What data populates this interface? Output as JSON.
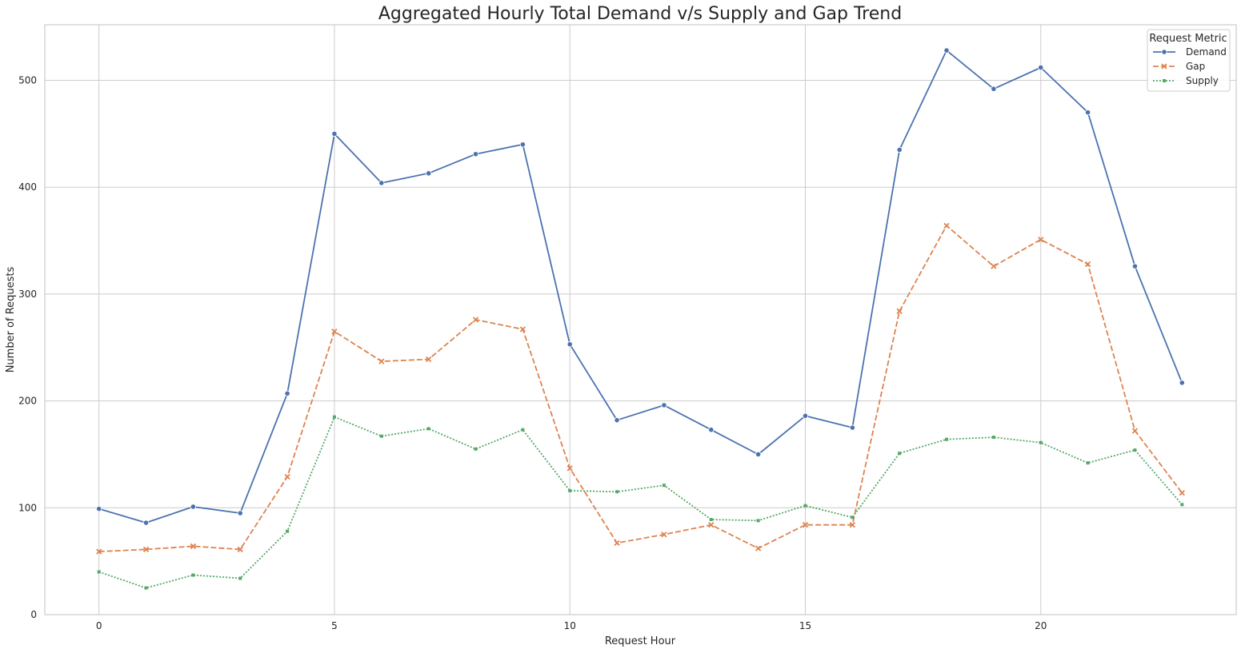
{
  "chart_data": {
    "type": "line",
    "title": "Aggregated Hourly Total Demand v/s Supply and Gap Trend",
    "xlabel": "Request Hour",
    "ylabel": "Number of Requests",
    "x": [
      0,
      1,
      2,
      3,
      4,
      5,
      6,
      7,
      8,
      9,
      10,
      11,
      12,
      13,
      14,
      15,
      16,
      17,
      18,
      19,
      20,
      21,
      22,
      23
    ],
    "xlim": [
      -1.15,
      24.15
    ],
    "ylim": [
      0,
      552
    ],
    "xticks": [
      0,
      5,
      10,
      15,
      20
    ],
    "yticks": [
      0,
      100,
      200,
      300,
      400,
      500
    ],
    "grid": true,
    "legend": {
      "title": "Request Metric",
      "placement": "top-right"
    },
    "series": [
      {
        "name": "Demand",
        "color": "#4c72b0",
        "marker": "circle",
        "linestyle": "solid",
        "values": [
          99,
          86,
          101,
          95,
          207,
          450,
          404,
          413,
          431,
          440,
          253,
          182,
          196,
          173,
          150,
          186,
          175,
          435,
          528,
          492,
          512,
          470,
          326,
          217
        ]
      },
      {
        "name": "Gap",
        "color": "#dd8452",
        "marker": "x",
        "linestyle": "dashed",
        "values": [
          59,
          61,
          64,
          61,
          129,
          265,
          237,
          239,
          276,
          267,
          137,
          67,
          75,
          84,
          62,
          84,
          84,
          284,
          364,
          326,
          351,
          328,
          172,
          114
        ]
      },
      {
        "name": "Supply",
        "color": "#55a868",
        "marker": "square",
        "linestyle": "dotted",
        "values": [
          40,
          25,
          37,
          34,
          78,
          185,
          167,
          174,
          155,
          173,
          116,
          115,
          121,
          89,
          88,
          102,
          91,
          151,
          164,
          166,
          161,
          142,
          154,
          103
        ]
      }
    ]
  }
}
